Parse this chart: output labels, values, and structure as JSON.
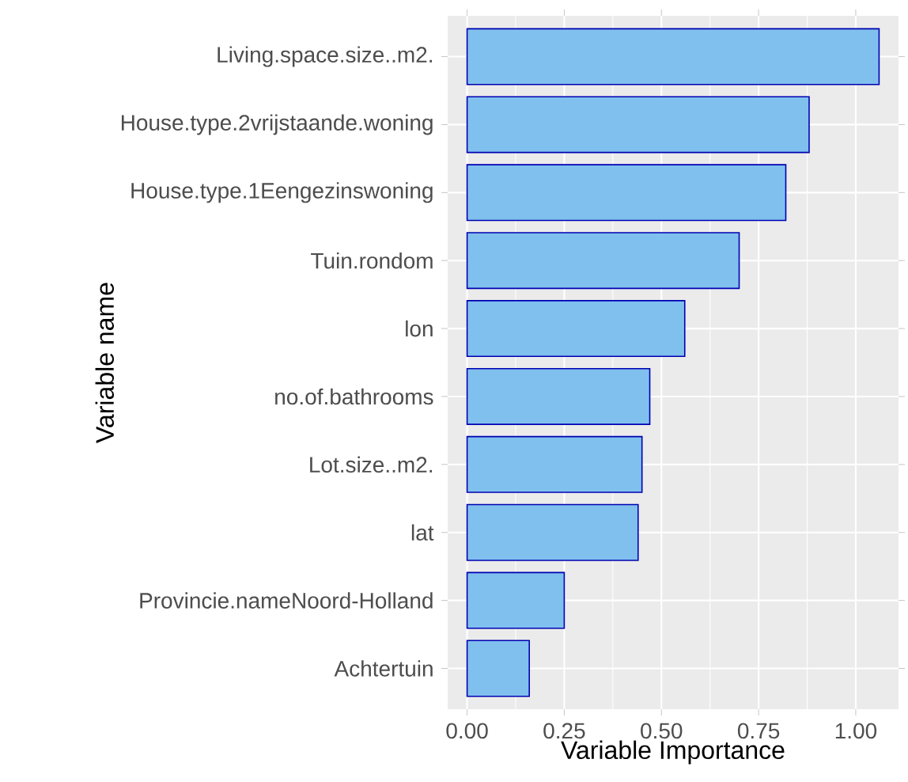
{
  "chart_data": {
    "type": "bar",
    "orientation": "horizontal",
    "xlabel": "Variable Importance",
    "ylabel": "Variable name",
    "categories": [
      "Living.space.size..m2.",
      "House.type.2vrijstaande.woning",
      "House.type.1Eengezinswoning",
      "Tuin.rondom",
      "lon",
      "no.of.bathrooms",
      "Lot.size..m2.",
      "lat",
      "Provincie.nameNoord-Holland",
      "Achtertuin"
    ],
    "values": [
      1.06,
      0.88,
      0.82,
      0.7,
      0.56,
      0.47,
      0.45,
      0.44,
      0.25,
      0.16
    ],
    "color": "#80c0ee",
    "xlim": [
      -0.05,
      1.11
    ],
    "xticks": [
      {
        "value": 0,
        "label": "0.00"
      },
      {
        "value": 0.25,
        "label": "0.25"
      },
      {
        "value": 0.5,
        "label": "0.50"
      },
      {
        "value": 0.75,
        "label": "0.75"
      },
      {
        "value": 1,
        "label": "1.00"
      }
    ],
    "grid": true
  }
}
